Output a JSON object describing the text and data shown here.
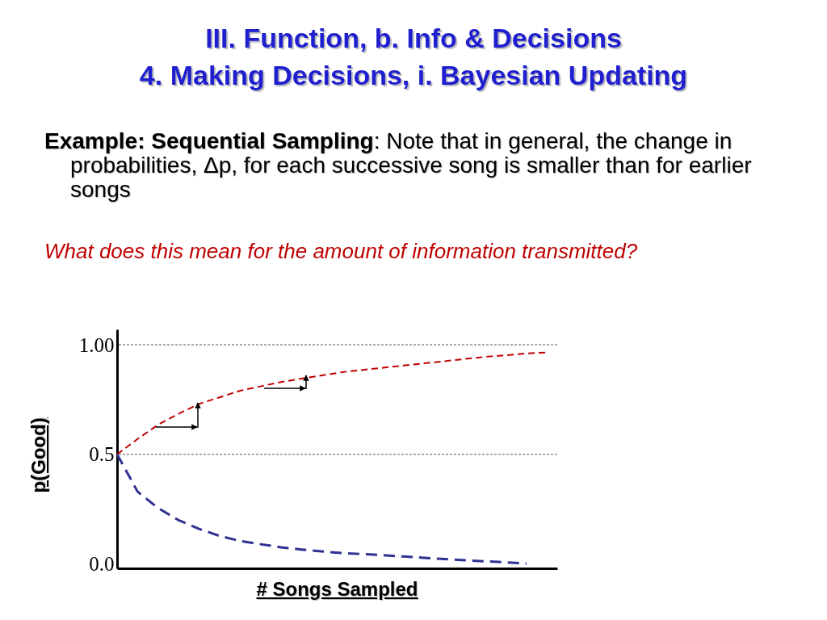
{
  "chart_data": {
    "type": "line",
    "title": "III. Function, b. Info & Decisions",
    "subtitle": "4. Making Decisions, i. Bayesian Updating",
    "annotations": [
      "Example: Sequential Sampling: Note that in general, the change in probabilities, Δp, for each successive song is smaller than for earlier songs",
      "What does this mean for the amount of information transmitted?"
    ],
    "xlabel": "# Songs Sampled",
    "ylabel": "p(Good)",
    "categories": [
      null,
      null,
      null,
      null,
      null,
      null,
      null,
      null,
      null,
      null,
      null,
      null,
      null,
      null,
      null,
      null,
      null,
      null,
      null,
      null,
      null,
      null
    ],
    "series": [
      {
        "color": "#c00000",
        "line_style": "dashed",
        "values": [
          0.5,
          0.57,
          0.635,
          0.685,
          0.73,
          0.76,
          0.79,
          0.81,
          0.83,
          0.845,
          0.86,
          0.875,
          0.885,
          0.895,
          0.905,
          0.915,
          0.925,
          0.935,
          0.945,
          0.952,
          0.96,
          0.965
        ]
      },
      {
        "color": "#2e3192",
        "line_style": "dashed",
        "values": [
          0.5,
          0.33,
          0.255,
          0.2,
          0.16,
          0.128,
          0.105,
          0.09,
          0.076,
          0.066,
          0.057,
          0.05,
          0.045,
          0.04,
          0.034,
          0.028,
          0.022,
          0.017,
          0.012,
          0.007,
          0.002,
          null
        ]
      }
    ],
    "ylim": [
      -0.02,
      1.07
    ],
    "yticks": [
      {
        "value": 0,
        "label": "0.0"
      },
      0.5,
      {
        "value": 1,
        "label": "1.00"
      }
    ],
    "ref_lines": [
      {
        "axis": "y",
        "value": 1,
        "color": "#555555",
        "line_style": "dashed"
      },
      {
        "axis": "y",
        "value": 0.5,
        "color": "#555555",
        "line_style": "dashed"
      }
    ],
    "grid": false,
    "marker": "none"
  }
}
